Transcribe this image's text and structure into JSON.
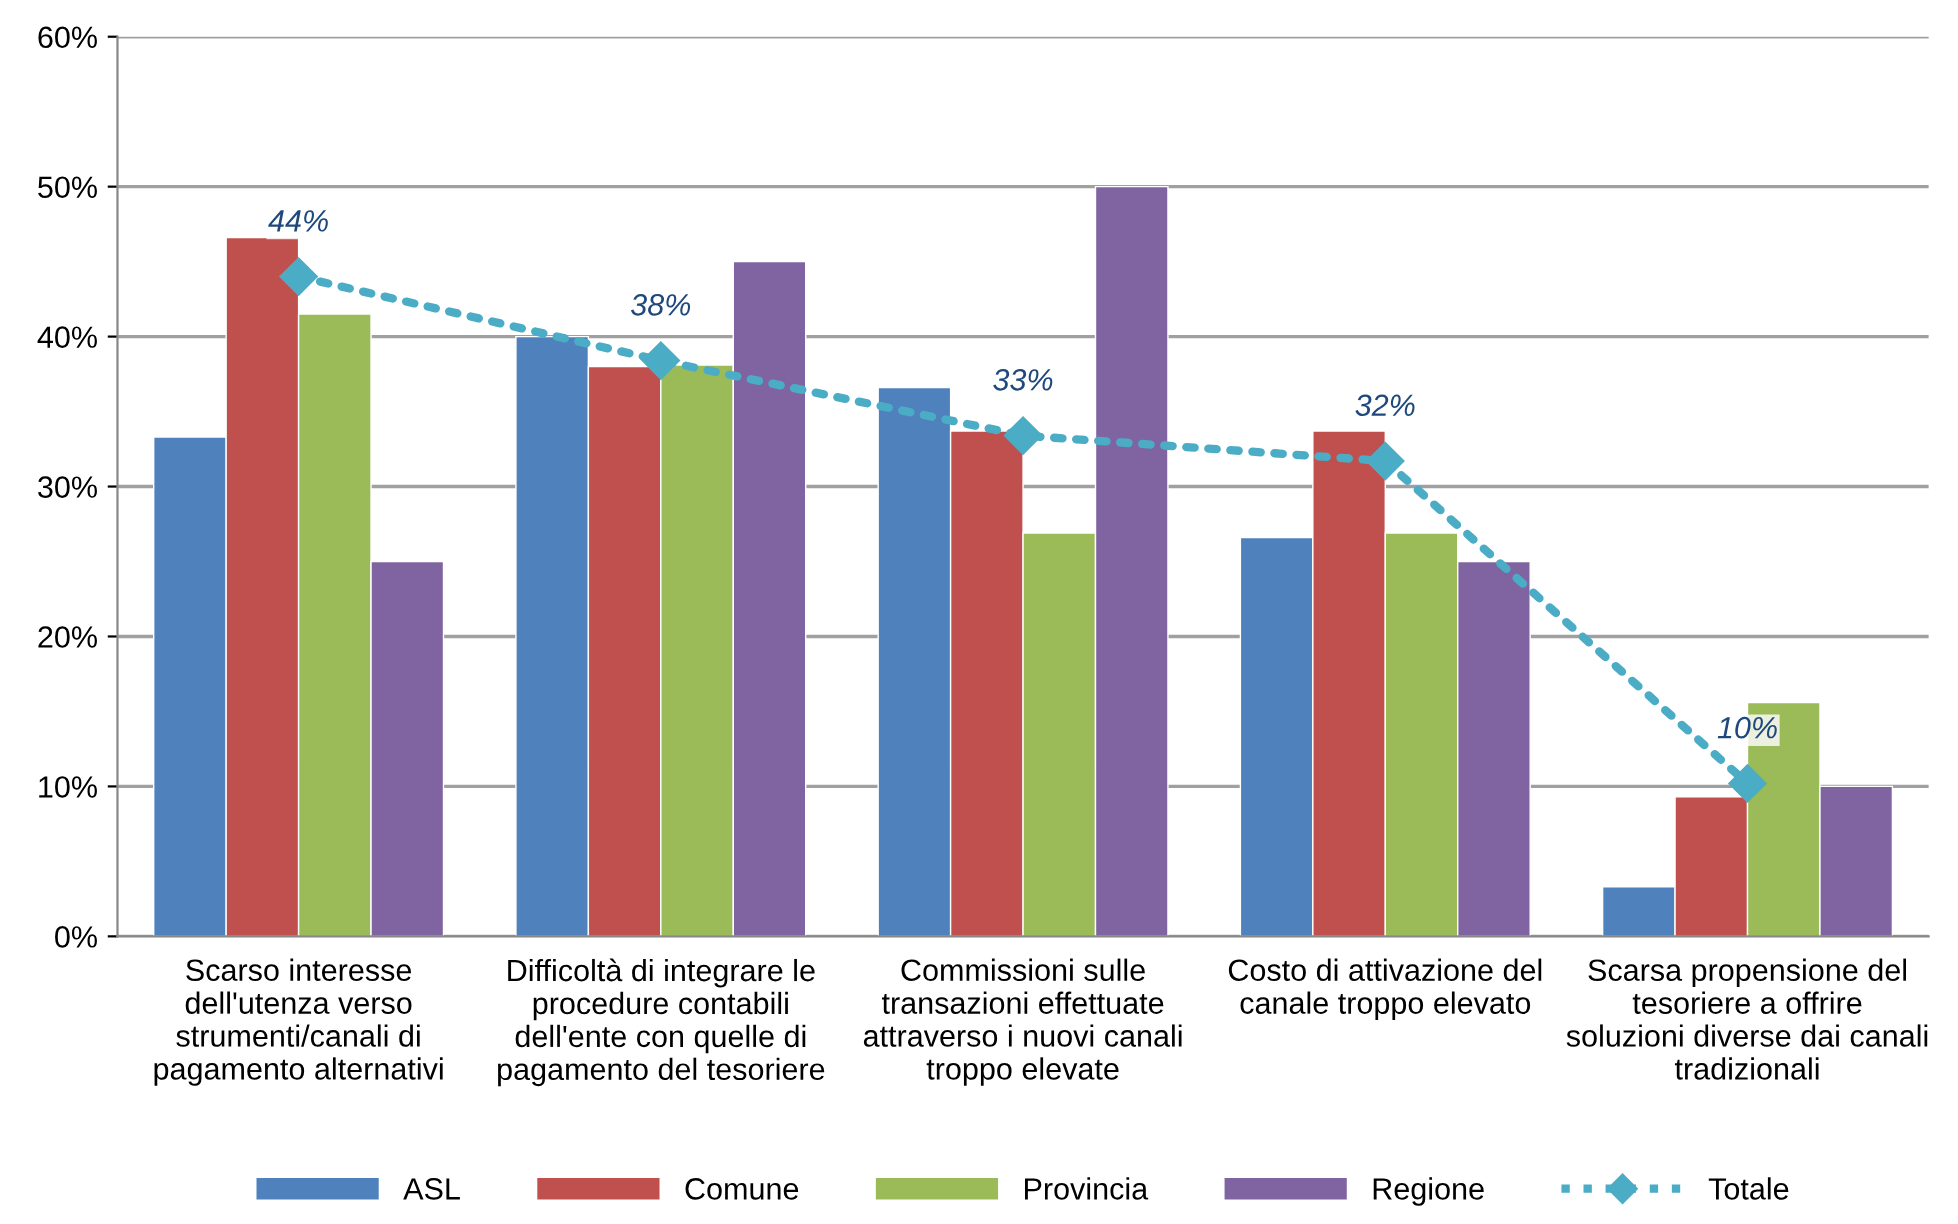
{
  "chart_data": {
    "type": "bar",
    "categories": [
      "Scarso interesse\ndell'utenza verso\nstrumenti/canali di\npagamento alternativi",
      "Difficoltà di integrare le\nprocedure contabili\ndell'ente con quelle di\npagamento del tesoriere",
      "Commissioni sulle\ntransazioni effettuate\nattraverso i nuovi canali\ntroppo elevate",
      "Costo di attivazione del\ncanale troppo elevato",
      "Scarsa propensione del\ntesoriere a offrire\nsoluzioni diverse dai canali\ntradizionali"
    ],
    "series": [
      {
        "name": "ASL",
        "color": "#4f81bd",
        "values": [
          33.3,
          40.0,
          36.6,
          26.6,
          3.3
        ]
      },
      {
        "name": "Comune",
        "color": "#c0504d",
        "values": [
          46.6,
          38.0,
          33.7,
          33.7,
          9.3
        ]
      },
      {
        "name": "Provincia",
        "color": "#9bbb59",
        "values": [
          41.5,
          38.1,
          26.9,
          26.9,
          15.6
        ]
      },
      {
        "name": "Regione",
        "color": "#8064a2",
        "values": [
          25.0,
          45.0,
          50.0,
          25.0,
          10.0
        ]
      },
      {
        "name": "Totale",
        "type": "line",
        "color": "#4bacc6",
        "marker": "diamond",
        "line_style": "dotted",
        "values": [
          44.0,
          38.4,
          33.4,
          31.7,
          10.2
        ],
        "value_labels": [
          "44%",
          "38%",
          "33%",
          "32%",
          "10%"
        ]
      }
    ],
    "ylim": [
      0,
      60
    ],
    "yticks": [
      {
        "value": 0,
        "label": "0%"
      },
      {
        "value": 10,
        "label": "10%"
      },
      {
        "value": 20,
        "label": "20%"
      },
      {
        "value": 30,
        "label": "30%"
      },
      {
        "value": 40,
        "label": "40%"
      },
      {
        "value": 50,
        "label": "50%"
      },
      {
        "value": 60,
        "label": "60%"
      }
    ],
    "grid": "y",
    "legend": "bottom"
  }
}
